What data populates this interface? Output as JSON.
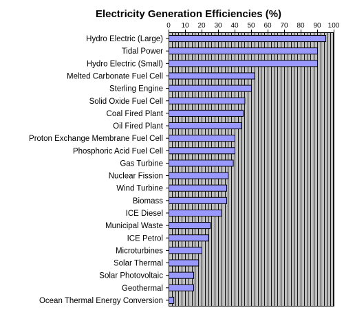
{
  "chart_data": {
    "type": "bar",
    "orientation": "horizontal",
    "title": "Electricity Generation Efficiencies (%)",
    "xlabel": "",
    "ylabel": "",
    "xlim": [
      0,
      100
    ],
    "x_ticks": [
      "0",
      "10",
      "20",
      "30",
      "40",
      "50",
      "60",
      "70",
      "80",
      "90",
      "100"
    ],
    "x_axis_position": "top",
    "grid": true,
    "plot_background": "#c0c0c0",
    "grid_color": "#000000",
    "bar_color": "#9999ff",
    "bar_border_color": "#000000",
    "categories": [
      "Hydro Electric (Large)",
      "Tidal Power",
      "Hydro Electric (Small)",
      "Melted Carbonate Fuel Cell",
      "Sterling Engine",
      "Solid Oxide Fuel Cell",
      "Coal Fired Plant",
      "Oil Fired Plant",
      "Proton Exchange Membrane Fuel Cell",
      "Phosphoric Acid Fuel Cell",
      "Gas Turbine",
      "Nuclear Fission",
      "Wind Turbine",
      "Biomass",
      "ICE Diesel",
      "Municipal Waste",
      "ICE Petrol",
      "Microturbines",
      "Solar Thermal",
      "Solar Photovoltaic",
      "Geothermal",
      "Ocean Thermal Energy Conversion"
    ],
    "values": [
      95,
      90,
      90,
      52,
      50,
      46,
      45,
      44,
      40,
      40,
      39,
      36,
      35,
      35,
      32,
      25,
      24,
      20,
      18,
      15,
      15,
      3
    ]
  }
}
